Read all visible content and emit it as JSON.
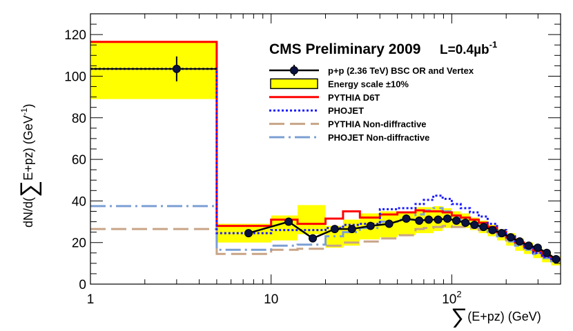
{
  "chart_data": {
    "type": "line",
    "title": "CMS Preliminary 2009",
    "lumi_label": "L=0.4µb",
    "lumi_sup": "-1",
    "xlabel_sigma": "∑",
    "xlabel": "(E+pz) (GeV)",
    "ylabel_pre": "dN/d(",
    "ylabel_sigma": "∑",
    "ylabel_post": "E+pz) (GeV",
    "ylabel_sup": "-1",
    "ylabel_end": ")",
    "xscale": "log",
    "xlim": [
      1,
      400
    ],
    "ylim": [
      0,
      130
    ],
    "x_ticks": [
      {
        "value": 1,
        "label": "1"
      },
      {
        "value": 10,
        "label": "10"
      },
      {
        "value": 100,
        "label": "10",
        "sup": "2"
      }
    ],
    "y_ticks": [
      {
        "value": 0,
        "label": "0"
      },
      {
        "value": 20,
        "label": "20"
      },
      {
        "value": 40,
        "label": "40"
      },
      {
        "value": 60,
        "label": "60"
      },
      {
        "value": 80,
        "label": "80"
      },
      {
        "value": 100,
        "label": "100"
      },
      {
        "value": 120,
        "label": "120"
      }
    ],
    "legend_position": "top-right",
    "legend": [
      {
        "label": "p+p (2.36 TeV) BSC OR and Vertex",
        "kind": "data"
      },
      {
        "label": "Energy scale ±10%",
        "kind": "band"
      },
      {
        "label": "PYTHIA D6T",
        "kind": "pythia"
      },
      {
        "label": "PHOJET",
        "kind": "phojet"
      },
      {
        "label": "PYTHIA Non-diffractive",
        "kind": "pythia_nd"
      },
      {
        "label": "PHOJET Non-diffractive",
        "kind": "phojet_nd"
      }
    ],
    "colors": {
      "data": "#000000",
      "marker": "#0a1240",
      "band": "#ffff00",
      "band_outline": "#000000",
      "pythia": "#ff0000",
      "phojet": "#1a1aff",
      "pythia_nd": "#c8a486",
      "phojet_nd": "#7b9fd3"
    },
    "bin_edges": [
      1,
      5,
      10,
      14,
      20,
      25,
      31,
      40,
      50,
      63,
      70,
      79,
      89,
      100,
      112,
      126,
      141,
      158,
      178,
      200,
      224,
      251,
      282,
      316,
      355,
      400
    ],
    "series": [
      {
        "key": "band",
        "low": [
          89,
          20,
          21,
          24,
          17.5,
          18.5,
          21.5,
          22.5,
          23.5,
          24.5,
          24.5,
          25.5,
          27,
          27,
          27,
          26,
          24.5,
          23,
          21,
          18.5,
          16,
          14.5,
          12.5,
          10.5,
          9
        ],
        "high": [
          117,
          29,
          33,
          38,
          28,
          31,
          34,
          35,
          35,
          37,
          37,
          37.5,
          36.5,
          35,
          34,
          32,
          30.5,
          28.5,
          26.5,
          24.5,
          22,
          20,
          18,
          15.5,
          13.5
        ]
      },
      {
        "key": "pythia",
        "values": [
          116.5,
          28,
          31,
          29,
          31.5,
          35,
          32,
          33.5,
          34.5,
          35.5,
          35,
          35,
          34.5,
          33,
          32,
          31,
          29.5,
          27.5,
          25,
          22.5,
          20,
          18,
          16,
          13.5,
          12
        ]
      },
      {
        "key": "phojet",
        "values": [
          103.5,
          24.5,
          26,
          26,
          27,
          28.5,
          29,
          36,
          36.5,
          38.5,
          40.5,
          42.5,
          41,
          38.5,
          36.5,
          34.5,
          32.5,
          29,
          26,
          23,
          20,
          17.5,
          15,
          13,
          11.5
        ]
      },
      {
        "key": "pythia_nd",
        "values": [
          26.5,
          14.5,
          16.5,
          17,
          18.5,
          20,
          20.5,
          22,
          23.5,
          26.5,
          27,
          27.5,
          28,
          27.5,
          27.5,
          27,
          26,
          25,
          23,
          21,
          19,
          17,
          15,
          13,
          11
        ]
      },
      {
        "key": "phojet_nd",
        "values": [
          37.5,
          16.5,
          18.5,
          19,
          23,
          25,
          27,
          30,
          31,
          33.5,
          35.5,
          36.5,
          35,
          32.5,
          30.5,
          29,
          27.5,
          25.5,
          23,
          20.5,
          18.5,
          16.5,
          14.5,
          12.5,
          11
        ]
      }
    ],
    "data_points": [
      {
        "x": 3,
        "y": 103.5,
        "err": 6
      },
      {
        "x": 7.5,
        "y": 24.5,
        "err": 1
      },
      {
        "x": 12.5,
        "y": 30,
        "err": 1.5
      },
      {
        "x": 17,
        "y": 22,
        "err": 1
      },
      {
        "x": 22.5,
        "y": 26.5,
        "err": 1
      },
      {
        "x": 28,
        "y": 26.5,
        "err": 1
      },
      {
        "x": 35.5,
        "y": 28,
        "err": 1
      },
      {
        "x": 45,
        "y": 29,
        "err": 1
      },
      {
        "x": 56,
        "y": 31.5,
        "err": 1
      },
      {
        "x": 66,
        "y": 30.5,
        "err": 1
      },
      {
        "x": 74.5,
        "y": 31,
        "err": 1
      },
      {
        "x": 84,
        "y": 31,
        "err": 1
      },
      {
        "x": 94.5,
        "y": 31.5,
        "err": 1
      },
      {
        "x": 106,
        "y": 30.5,
        "err": 1
      },
      {
        "x": 119,
        "y": 29.5,
        "err": 1
      },
      {
        "x": 133.5,
        "y": 28.5,
        "err": 1
      },
      {
        "x": 150,
        "y": 27.5,
        "err": 1
      },
      {
        "x": 168,
        "y": 26,
        "err": 1
      },
      {
        "x": 189,
        "y": 24.5,
        "err": 1
      },
      {
        "x": 212,
        "y": 22.5,
        "err": 1
      },
      {
        "x": 237.5,
        "y": 20.5,
        "err": 1
      },
      {
        "x": 266.5,
        "y": 18.5,
        "err": 1
      },
      {
        "x": 299,
        "y": 17.5,
        "err": 1
      },
      {
        "x": 335.5,
        "y": 15,
        "err": 1
      },
      {
        "x": 377.5,
        "y": 12,
        "err": 1
      }
    ]
  }
}
